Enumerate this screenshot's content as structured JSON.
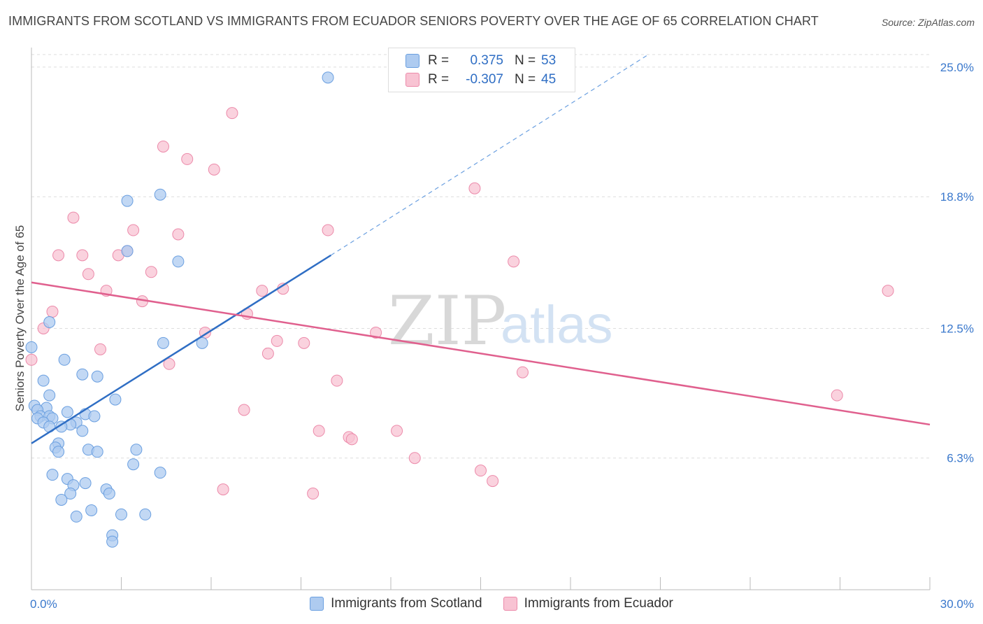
{
  "header": {
    "title": "IMMIGRANTS FROM SCOTLAND VS IMMIGRANTS FROM ECUADOR SENIORS POVERTY OVER THE AGE OF 65 CORRELATION CHART",
    "source": "Source: ZipAtlas.com"
  },
  "legend": {
    "series_a": {
      "r_label": "R =",
      "r_value": "0.375",
      "n_label": "N =",
      "n_value": "53"
    },
    "series_b": {
      "r_label": "R =",
      "r_value": "-0.307",
      "n_label": "N =",
      "n_value": "45"
    }
  },
  "bottom_legend": {
    "series_a": "Immigrants from Scotland",
    "series_b": "Immigrants from Ecuador"
  },
  "colors": {
    "scotland_fill": "#aecbf0",
    "scotland_stroke": "#6a9fe0",
    "scotland_line": "#2f6ec4",
    "ecuador_fill": "#f8c3d3",
    "ecuador_stroke": "#ec8aaa",
    "ecuador_line": "#e0608e",
    "tick_label": "#3a78cc",
    "grid": "#dddddd",
    "watermark": "#d3e2f3"
  },
  "chart_data": {
    "type": "scatter",
    "title": "IMMIGRANTS FROM SCOTLAND VS IMMIGRANTS FROM ECUADOR SENIORS POVERTY OVER THE AGE OF 65 CORRELATION CHART",
    "xlabel": "",
    "ylabel": "Seniors Poverty Over the Age of 65",
    "xlim": [
      0,
      30
    ],
    "ylim": [
      0,
      25.6
    ],
    "x_tick_labels": {
      "min": "0.0%",
      "max": "30.0%"
    },
    "y_ticks": [
      6.3,
      12.5,
      18.8,
      25.0
    ],
    "y_tick_labels": [
      "6.3%",
      "12.5%",
      "18.8%",
      "25.0%"
    ],
    "grid": true,
    "watermark": {
      "zip": "ZIP",
      "atlas": "atlas"
    },
    "series": [
      {
        "name": "Immigrants from Scotland",
        "points": [
          [
            9.9,
            24.5
          ],
          [
            3.2,
            18.6
          ],
          [
            3.2,
            16.2
          ],
          [
            4.3,
            18.9
          ],
          [
            4.9,
            15.7
          ],
          [
            0.6,
            12.8
          ],
          [
            4.4,
            11.8
          ],
          [
            5.7,
            11.8
          ],
          [
            1.1,
            11.0
          ],
          [
            1.7,
            10.3
          ],
          [
            2.2,
            10.2
          ],
          [
            0.4,
            10.0
          ],
          [
            0.6,
            9.3
          ],
          [
            2.8,
            9.1
          ],
          [
            0.0,
            11.6
          ],
          [
            0.1,
            8.8
          ],
          [
            0.5,
            8.7
          ],
          [
            0.2,
            8.6
          ],
          [
            1.2,
            8.5
          ],
          [
            1.8,
            8.4
          ],
          [
            2.1,
            8.3
          ],
          [
            0.3,
            8.3
          ],
          [
            0.6,
            8.3
          ],
          [
            0.7,
            8.2
          ],
          [
            0.2,
            8.2
          ],
          [
            0.4,
            8.0
          ],
          [
            1.5,
            8.0
          ],
          [
            1.3,
            7.9
          ],
          [
            0.6,
            7.8
          ],
          [
            1.0,
            7.8
          ],
          [
            1.7,
            7.6
          ],
          [
            0.9,
            7.0
          ],
          [
            1.9,
            6.7
          ],
          [
            0.8,
            6.8
          ],
          [
            0.9,
            6.6
          ],
          [
            3.5,
            6.7
          ],
          [
            2.2,
            6.6
          ],
          [
            3.4,
            6.0
          ],
          [
            4.3,
            5.6
          ],
          [
            0.7,
            5.5
          ],
          [
            1.2,
            5.3
          ],
          [
            1.4,
            5.0
          ],
          [
            1.8,
            5.1
          ],
          [
            2.5,
            4.8
          ],
          [
            2.6,
            4.6
          ],
          [
            1.3,
            4.6
          ],
          [
            1.0,
            4.3
          ],
          [
            2.0,
            3.8
          ],
          [
            3.0,
            3.6
          ],
          [
            1.5,
            3.5
          ],
          [
            3.8,
            3.6
          ],
          [
            2.7,
            2.6
          ],
          [
            2.7,
            2.3
          ]
        ]
      },
      {
        "name": "Immigrants from Ecuador",
        "points": [
          [
            6.7,
            22.8
          ],
          [
            4.4,
            21.2
          ],
          [
            5.2,
            20.6
          ],
          [
            6.1,
            20.1
          ],
          [
            14.8,
            19.2
          ],
          [
            1.4,
            17.8
          ],
          [
            3.4,
            17.2
          ],
          [
            4.9,
            17.0
          ],
          [
            9.9,
            17.2
          ],
          [
            0.9,
            16.0
          ],
          [
            1.7,
            16.0
          ],
          [
            3.2,
            16.2
          ],
          [
            2.9,
            16.0
          ],
          [
            16.1,
            15.7
          ],
          [
            1.9,
            15.1
          ],
          [
            4.0,
            15.2
          ],
          [
            2.5,
            14.3
          ],
          [
            7.7,
            14.3
          ],
          [
            8.4,
            14.4
          ],
          [
            28.6,
            14.3
          ],
          [
            3.7,
            13.8
          ],
          [
            0.7,
            13.3
          ],
          [
            7.2,
            13.2
          ],
          [
            0.4,
            12.5
          ],
          [
            5.8,
            12.3
          ],
          [
            11.5,
            12.3
          ],
          [
            8.2,
            11.9
          ],
          [
            9.1,
            11.8
          ],
          [
            2.3,
            11.5
          ],
          [
            7.9,
            11.3
          ],
          [
            4.6,
            10.8
          ],
          [
            16.4,
            10.4
          ],
          [
            10.2,
            10.0
          ],
          [
            0.0,
            11.0
          ],
          [
            26.9,
            9.3
          ],
          [
            7.1,
            8.6
          ],
          [
            12.2,
            7.6
          ],
          [
            9.6,
            7.6
          ],
          [
            10.6,
            7.3
          ],
          [
            10.7,
            7.2
          ],
          [
            12.8,
            6.3
          ],
          [
            15.0,
            5.7
          ],
          [
            15.4,
            5.2
          ],
          [
            6.4,
            4.8
          ],
          [
            9.4,
            4.6
          ]
        ]
      }
    ],
    "trendlines": [
      {
        "series": "Immigrants from Scotland",
        "x": [
          0.0,
          10.0
        ],
        "y": [
          7.0,
          16.0
        ],
        "extended_dashed_to": [
          20.6,
          25.6
        ]
      },
      {
        "series": "Immigrants from Ecuador",
        "x": [
          0.0,
          30.0
        ],
        "y": [
          14.7,
          7.9
        ]
      }
    ]
  }
}
